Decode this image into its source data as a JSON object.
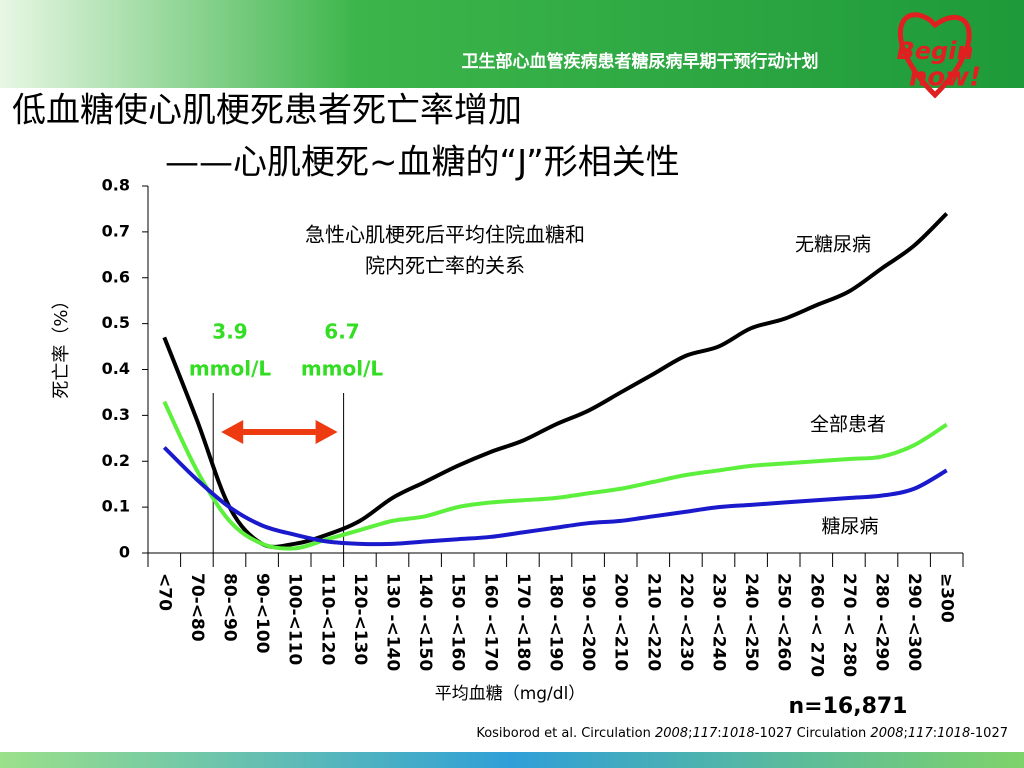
{
  "header": {
    "program": "卫生部心血管疾病患者糖尿病早期干预行动计划",
    "logo": [
      "Begin",
      "now!"
    ]
  },
  "title": [
    "低血糖使心肌梗死患者死亡率增加",
    "——心肌梗死~血糖的“J”形相关性"
  ],
  "chart_data": {
    "type": "line",
    "subtitle": [
      "急性心肌梗死后平均住院血糖和",
      "院内死亡率的关系"
    ],
    "ylabel": "死亡率（%）",
    "xlabel": "平均血糖（mg/dl）",
    "categories": [
      "<70",
      "70-<80",
      "80-<90",
      "90-<100",
      "100-<110",
      "110-<120",
      "120-<130",
      "130 -<140",
      "140 -<150",
      "150 -<160",
      "160 -<170",
      "170 -<180",
      "180 -<190",
      "190 -<200",
      "200 -<210",
      "210 -<220",
      "220 -<230",
      "230 -<240",
      "240 -<250",
      "250 -<260",
      "260 -< 270",
      "270 -< 280",
      "280 -<290",
      "290 -<300",
      "≥300"
    ],
    "ylim": [
      0,
      0.8
    ],
    "yticks": [
      0,
      0.1,
      0.2,
      0.3,
      0.4,
      0.5,
      0.6,
      0.7,
      0.8
    ],
    "series": [
      {
        "name": "无糖尿病",
        "color": "#000000",
        "values": [
          0.47,
          0.29,
          0.1,
          0.02,
          0.02,
          0.04,
          0.07,
          0.12,
          0.155,
          0.19,
          0.22,
          0.245,
          0.28,
          0.31,
          0.35,
          0.39,
          0.43,
          0.45,
          0.49,
          0.51,
          0.54,
          0.57,
          0.62,
          0.67,
          0.74
        ]
      },
      {
        "name": "全部患者",
        "color": "#5cf03c",
        "values": [
          0.33,
          0.18,
          0.07,
          0.02,
          0.01,
          0.03,
          0.05,
          0.07,
          0.08,
          0.1,
          0.11,
          0.115,
          0.12,
          0.13,
          0.14,
          0.155,
          0.17,
          0.18,
          0.19,
          0.195,
          0.2,
          0.205,
          0.21,
          0.235,
          0.28
        ]
      },
      {
        "name": "糖尿病",
        "color": "#1a1acc",
        "values": [
          0.23,
          0.16,
          0.1,
          0.06,
          0.04,
          0.025,
          0.02,
          0.02,
          0.025,
          0.03,
          0.035,
          0.045,
          0.055,
          0.065,
          0.07,
          0.08,
          0.09,
          0.1,
          0.105,
          0.11,
          0.115,
          0.12,
          0.125,
          0.14,
          0.18
        ]
      }
    ],
    "annotations": [
      "3.9",
      "mmol/L",
      "6.7",
      "mmol/L",
      "n=16,871"
    ]
  },
  "citation": [
    "Kosiborod et al. Circulation ",
    "2008",
    ";",
    "117",
    ":",
    "1018",
    "-1027 Circulation ",
    "2008",
    ";",
    "117",
    ":",
    "1018",
    "-1027"
  ]
}
